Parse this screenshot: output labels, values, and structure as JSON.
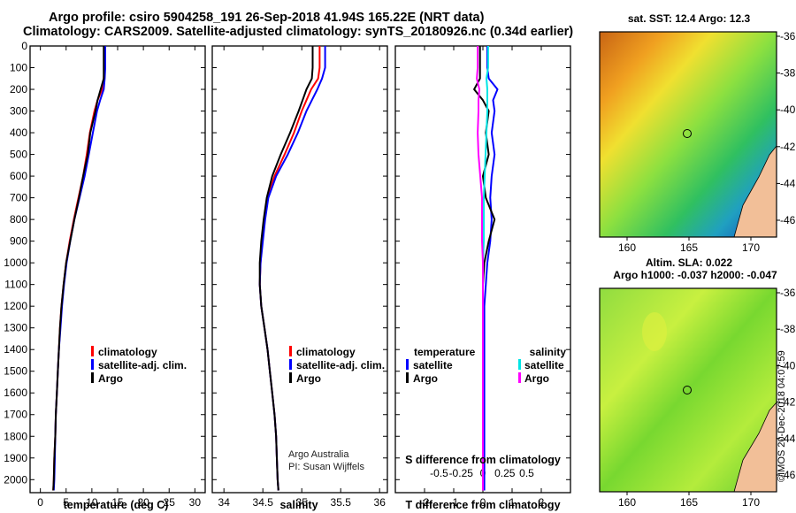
{
  "header": {
    "line1": "Argo profile: csiro 5904258_191 26-Sep-2018 41.94S 165.22E (NRT data)",
    "line2": "Climatology: CARS2009. Satellite-adjusted climatology: synTS_20180926.nc (0.34d earlier)"
  },
  "map1": {
    "title": "sat. SST: 12.4 Argo: 12.3",
    "lat_ticks": [
      "-36",
      "-38",
      "-40",
      "-42",
      "-44",
      "-46"
    ],
    "lon_ticks": [
      "160",
      "165",
      "170"
    ]
  },
  "map2": {
    "title_line1": "Altim. SLA: 0.022",
    "title_line2": "Argo h1000: -0.037 h2000: -0.047",
    "lat_ticks": [
      "-36",
      "-38",
      "-40",
      "-42",
      "-44",
      "-46"
    ],
    "lon_ticks": [
      "160",
      "165",
      "170"
    ]
  },
  "legend_temp": [
    "climatology",
    "satellite-adj. clim.",
    "Argo"
  ],
  "legend_sal": [
    "climatology",
    "satellite-adj. clim.",
    "Argo"
  ],
  "legend_diff": {
    "temperature": "temperature",
    "salinity": "salinity",
    "satellite": "satellite",
    "argo": "Argo"
  },
  "credit": {
    "line1": "Argo Australia",
    "line2": "PI: Susan Wijffels"
  },
  "stamp": "©IMOS 20-Dec-2018 04:07:59",
  "colors": {
    "climatology": "#ff0000",
    "satellite": "#0000ff",
    "argo": "#000000",
    "sal_satellite": "#00e5e5",
    "sal_argo": "#ff00ff"
  },
  "chart_data": [
    {
      "type": "line",
      "title": "",
      "xlabel": "temperature (deg C)",
      "ylabel": "",
      "xlim": [
        -2,
        32
      ],
      "ylim": [
        2060,
        0
      ],
      "xticks": [
        0,
        5,
        10,
        15,
        20,
        25,
        30
      ],
      "yticks": [
        0,
        100,
        200,
        300,
        400,
        500,
        600,
        700,
        800,
        900,
        1000,
        1100,
        1200,
        1300,
        1400,
        1500,
        1600,
        1700,
        1800,
        1900,
        2000
      ],
      "ytick_labels": [
        "0",
        "100",
        "200",
        "300",
        "400",
        "500",
        "600",
        "700",
        "800",
        "900",
        "1000",
        "1100",
        "1200",
        "1300",
        "1400",
        "1500",
        "1600",
        "1700",
        "1800",
        "1900",
        "2000"
      ],
      "depth": [
        0,
        50,
        100,
        150,
        200,
        250,
        300,
        400,
        500,
        600,
        700,
        800,
        900,
        1000,
        1100,
        1200,
        1300,
        1400,
        1500,
        1600,
        1700,
        1800,
        1900,
        2000,
        2050
      ],
      "series": [
        {
          "name": "climatology",
          "values": [
            12.4,
            12.4,
            12.4,
            12.3,
            12.0,
            11.1,
            10.5,
            9.6,
            9.0,
            8.3,
            7.4,
            6.5,
            5.7,
            5.0,
            4.5,
            4.1,
            3.8,
            3.6,
            3.4,
            3.2,
            3.0,
            2.9,
            2.7,
            2.6,
            2.5
          ]
        },
        {
          "name": "satellite-adj. clim.",
          "values": [
            12.6,
            12.6,
            12.6,
            12.5,
            12.3,
            11.6,
            11.0,
            10.2,
            9.4,
            8.6,
            7.6,
            6.6,
            5.8,
            5.1,
            4.6,
            4.2,
            3.9,
            3.6,
            3.4,
            3.2,
            3.0,
            2.9,
            2.8,
            2.7,
            2.6
          ]
        },
        {
          "name": "Argo",
          "values": [
            12.3,
            12.3,
            12.3,
            12.3,
            11.7,
            11.1,
            10.7,
            9.7,
            9.2,
            8.3,
            7.5,
            6.6,
            5.8,
            5.0,
            4.5,
            4.1,
            3.8,
            3.6,
            3.4,
            3.2,
            3.0,
            2.9,
            2.7,
            2.6,
            2.5
          ]
        }
      ]
    },
    {
      "type": "line",
      "title": "",
      "xlabel": "salinity",
      "ylabel": "",
      "xlim": [
        33.85,
        36.1
      ],
      "ylim": [
        2060,
        0
      ],
      "xticks": [
        34,
        34.5,
        35,
        35.5,
        36
      ],
      "xtick_labels": [
        "34",
        "34.5",
        "35",
        "35.5",
        "36"
      ],
      "depth": [
        0,
        50,
        100,
        150,
        200,
        250,
        300,
        400,
        500,
        600,
        700,
        800,
        900,
        1000,
        1100,
        1200,
        1300,
        1400,
        1500,
        1600,
        1700,
        1800,
        1900,
        2000,
        2050
      ],
      "series": [
        {
          "name": "climatology",
          "values": [
            35.23,
            35.23,
            35.23,
            35.21,
            35.12,
            35.06,
            35.0,
            34.9,
            34.78,
            34.65,
            34.56,
            34.52,
            34.49,
            34.47,
            34.46,
            34.48,
            34.52,
            34.56,
            34.59,
            34.62,
            34.65,
            34.67,
            34.68,
            34.69,
            34.7
          ]
        },
        {
          "name": "satellite-adj. clim.",
          "values": [
            35.3,
            35.3,
            35.3,
            35.26,
            35.2,
            35.13,
            35.06,
            34.95,
            34.82,
            34.67,
            34.57,
            34.53,
            34.5,
            34.47,
            34.46,
            34.48,
            34.52,
            34.56,
            34.59,
            34.62,
            34.65,
            34.67,
            34.68,
            34.69,
            34.7
          ]
        },
        {
          "name": "Argo",
          "values": [
            35.14,
            35.14,
            35.14,
            35.13,
            35.06,
            35.01,
            34.96,
            34.85,
            34.73,
            34.62,
            34.55,
            34.51,
            34.48,
            34.46,
            34.46,
            34.48,
            34.52,
            34.56,
            34.59,
            34.62,
            34.65,
            34.67,
            34.68,
            34.69,
            34.7
          ]
        }
      ]
    },
    {
      "type": "line",
      "title": "",
      "xlabel": "T difference from climatology",
      "ylabel": "",
      "xlim": [
        -3,
        3
      ],
      "ylim": [
        2060,
        0
      ],
      "xticks": [
        -2,
        -1,
        0,
        1,
        2
      ],
      "xtick_labels": [
        "-2",
        "-1",
        "0",
        "1",
        "2"
      ],
      "secondary_x": {
        "label": "S difference from climatology",
        "ticks": [
          -0.5,
          -0.25,
          0,
          0.25,
          0.5
        ],
        "tick_labels": [
          "-0.5",
          "-0.25",
          "0",
          "0.25",
          "0.5"
        ]
      },
      "depth": [
        0,
        50,
        100,
        150,
        200,
        250,
        300,
        400,
        500,
        600,
        700,
        800,
        900,
        1000,
        1100,
        1200,
        1300,
        1400,
        1500,
        1600,
        1700,
        1800,
        1900,
        2000,
        2050
      ],
      "series": [
        {
          "name": "T satellite",
          "values": [
            0.15,
            0.15,
            0.15,
            0.2,
            0.5,
            0.35,
            0.4,
            0.3,
            0.4,
            0.3,
            0.25,
            0.3,
            0.25,
            0.15,
            0.1,
            0.05,
            0.05,
            0.05,
            0.05,
            0.05,
            0.05,
            0.05,
            0.05,
            0.05,
            0.05
          ]
        },
        {
          "name": "T Argo",
          "values": [
            -0.1,
            -0.1,
            -0.1,
            -0.1,
            -0.3,
            0.0,
            0.2,
            0.1,
            0.2,
            0.0,
            0.1,
            0.4,
            0.2,
            0.05,
            0.0,
            0.0,
            0.0,
            0.0,
            0.0,
            0.0,
            0.0,
            0.0,
            0.0,
            0.0,
            0.0
          ]
        },
        {
          "name": "S satellite",
          "values": [
            0.06,
            0.06,
            0.06,
            0.04,
            0.05,
            0.05,
            0.05,
            0.04,
            0.03,
            0.02,
            0.01,
            0.01,
            0.01,
            0.0,
            0.0,
            0.0,
            0.0,
            0.0,
            0.0,
            0.0,
            0.0,
            0.0,
            0.0,
            0.0,
            0.0
          ]
        },
        {
          "name": "S Argo",
          "values": [
            -0.06,
            -0.06,
            -0.06,
            -0.07,
            -0.04,
            -0.05,
            -0.05,
            -0.06,
            -0.05,
            -0.03,
            -0.01,
            -0.01,
            -0.01,
            0.0,
            0.0,
            0.0,
            0.0,
            0.0,
            0.0,
            0.0,
            0.0,
            0.0,
            0.0,
            0.0,
            0.0
          ]
        }
      ]
    }
  ]
}
